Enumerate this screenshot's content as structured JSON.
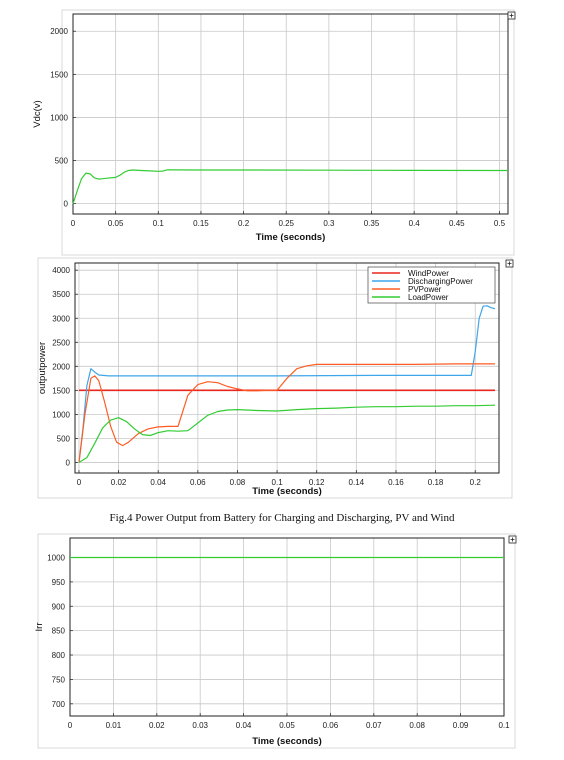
{
  "caption": "Fig.4 Power Output from Battery for Charging and Discharging, PV and Wind",
  "chart_data": [
    {
      "type": "line",
      "xlabel": "Time (seconds)",
      "ylabel": "Vdc(v)",
      "xlim": [
        0,
        0.51
      ],
      "ylim": [
        -120,
        2200
      ],
      "xticks": [
        0,
        0.05,
        0.1,
        0.15,
        0.2,
        0.25,
        0.3,
        0.35,
        0.4,
        0.45,
        0.5
      ],
      "xtick_labels": [
        "0",
        "0.05",
        "0.1",
        "0.15",
        "0.2",
        "0.25",
        "0.3",
        "0.35",
        "0.4",
        "0.45",
        "0.5"
      ],
      "yticks": [
        0,
        500,
        1000,
        1500,
        2000
      ],
      "ytick_labels": [
        "0",
        "500",
        "1000",
        "1500",
        "2000"
      ],
      "grid": true,
      "series": [
        {
          "color": "#33cc33",
          "x": [
            0,
            0.005,
            0.01,
            0.015,
            0.02,
            0.025,
            0.03,
            0.035,
            0.04,
            0.05,
            0.055,
            0.06,
            0.065,
            0.07,
            0.08,
            0.09,
            0.1,
            0.105,
            0.11,
            0.12,
            0.15,
            0.2,
            0.3,
            0.4,
            0.5,
            0.51
          ],
          "values": [
            0,
            150,
            290,
            355,
            345,
            300,
            285,
            290,
            295,
            305,
            330,
            365,
            385,
            390,
            385,
            380,
            375,
            378,
            392,
            392,
            390,
            390,
            388,
            386,
            385,
            385
          ]
        }
      ]
    },
    {
      "type": "line",
      "xlabel": "Time (seconds)",
      "ylabel": "outputpower",
      "xlim": [
        -0.002,
        0.212
      ],
      "ylim": [
        -220,
        4150
      ],
      "xticks": [
        0,
        0.02,
        0.04,
        0.06,
        0.08,
        0.1,
        0.12,
        0.14,
        0.16,
        0.18,
        0.2
      ],
      "xtick_labels": [
        "0",
        "0.02",
        "0.04",
        "0.06",
        "0.08",
        "0.1",
        "0.12",
        "0.14",
        "0.16",
        "0.18",
        "0.2"
      ],
      "yticks": [
        0,
        500,
        1000,
        1500,
        2000,
        2500,
        3000,
        3500,
        4000
      ],
      "ytick_labels": [
        "0",
        "500",
        "1000",
        "1500",
        "2000",
        "2500",
        "3000",
        "3500",
        "4000"
      ],
      "grid": true,
      "legend": "top-right",
      "series": [
        {
          "name": "WindPower",
          "color": "#e8261d",
          "x": [
            0,
            0.21
          ],
          "values": [
            1500,
            1500
          ]
        },
        {
          "name": "DischargingPower",
          "color": "#3ea6ea",
          "x": [
            0,
            0.002,
            0.004,
            0.006,
            0.008,
            0.01,
            0.015,
            0.02,
            0.05,
            0.1,
            0.15,
            0.198,
            0.2,
            0.202,
            0.204,
            0.206,
            0.208,
            0.21
          ],
          "values": [
            0,
            700,
            1600,
            1950,
            1880,
            1820,
            1800,
            1800,
            1800,
            1800,
            1810,
            1810,
            2300,
            3000,
            3250,
            3260,
            3220,
            3200
          ]
        },
        {
          "name": "PVPower",
          "color": "#ff5c24",
          "x": [
            0,
            0.003,
            0.006,
            0.008,
            0.01,
            0.013,
            0.016,
            0.019,
            0.022,
            0.025,
            0.03,
            0.035,
            0.04,
            0.045,
            0.05,
            0.055,
            0.06,
            0.065,
            0.07,
            0.075,
            0.08,
            0.085,
            0.09,
            0.095,
            0.1,
            0.105,
            0.11,
            0.115,
            0.12,
            0.13,
            0.15,
            0.17,
            0.19,
            0.21
          ],
          "values": [
            0,
            1000,
            1750,
            1800,
            1700,
            1250,
            750,
            420,
            350,
            420,
            600,
            700,
            740,
            750,
            750,
            1400,
            1620,
            1680,
            1660,
            1580,
            1530,
            1490,
            1490,
            1500,
            1500,
            1750,
            1950,
            2010,
            2040,
            2040,
            2040,
            2040,
            2050,
            2050
          ]
        },
        {
          "name": "LoadPower",
          "color": "#33cc33",
          "x": [
            0,
            0.004,
            0.008,
            0.012,
            0.016,
            0.02,
            0.024,
            0.028,
            0.032,
            0.036,
            0.04,
            0.045,
            0.05,
            0.055,
            0.06,
            0.065,
            0.07,
            0.075,
            0.08,
            0.09,
            0.1,
            0.11,
            0.12,
            0.13,
            0.14,
            0.15,
            0.16,
            0.17,
            0.18,
            0.19,
            0.2,
            0.21
          ],
          "values": [
            0,
            100,
            400,
            720,
            880,
            930,
            850,
            700,
            580,
            560,
            620,
            660,
            650,
            660,
            820,
            980,
            1060,
            1090,
            1100,
            1080,
            1070,
            1100,
            1120,
            1130,
            1150,
            1160,
            1160,
            1170,
            1170,
            1180,
            1180,
            1190
          ]
        }
      ]
    },
    {
      "type": "line",
      "xlabel": "Time (seconds)",
      "ylabel": "Irr",
      "xlim": [
        0,
        0.1
      ],
      "ylim": [
        675,
        1040
      ],
      "xticks": [
        0,
        0.01,
        0.02,
        0.03,
        0.04,
        0.05,
        0.06,
        0.07,
        0.08,
        0.09,
        0.1
      ],
      "xtick_labels": [
        "0",
        "0.01",
        "0.02",
        "0.03",
        "0.04",
        "0.05",
        "0.06",
        "0.07",
        "0.08",
        "0.09",
        "0.1"
      ],
      "yticks": [
        700,
        750,
        800,
        850,
        900,
        950,
        1000
      ],
      "ytick_labels": [
        "700",
        "750",
        "800",
        "850",
        "900",
        "950",
        "1000"
      ],
      "grid": true,
      "series": [
        {
          "color": "#33cc33",
          "x": [
            0,
            0.1
          ],
          "values": [
            1000,
            1000
          ]
        }
      ]
    }
  ]
}
